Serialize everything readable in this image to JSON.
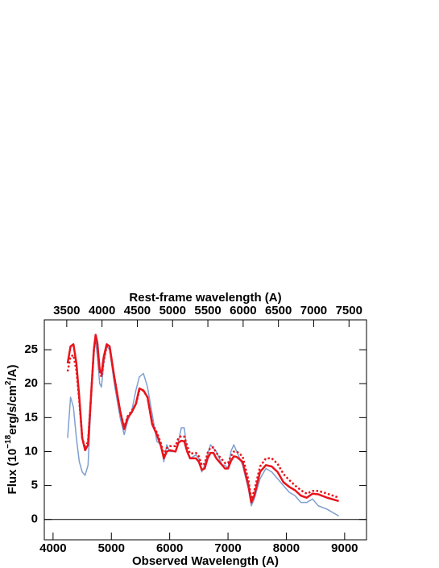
{
  "chart_data": {
    "type": "line",
    "xlabel": "Observed Wavelength (A)",
    "x2label": "Rest-frame wavelength (A)",
    "ylabel": [
      "Flux (10",
      "−18",
      "erg/s/cm",
      "2",
      "/A)"
    ],
    "xlim": [
      3850,
      9375
    ],
    "xticks": [
      4000,
      5000,
      6000,
      7000,
      8000,
      9000
    ],
    "x2lim": [
      3182,
      7748
    ],
    "x2ticks": [
      3500,
      4000,
      4500,
      5000,
      5500,
      6000,
      6500,
      7000,
      7500
    ],
    "ylim": [
      -3,
      29.4
    ],
    "yticks": [
      0,
      5,
      10,
      15,
      20,
      25
    ],
    "hline": 0,
    "x": [
      4250,
      4300,
      4350,
      4400,
      4450,
      4500,
      4550,
      4600,
      4650,
      4700,
      4730,
      4760,
      4800,
      4830,
      4870,
      4920,
      4970,
      5050,
      5150,
      5220,
      5280,
      5350,
      5420,
      5480,
      5550,
      5620,
      5700,
      5780,
      5850,
      5900,
      5950,
      6000,
      6100,
      6150,
      6200,
      6250,
      6300,
      6350,
      6450,
      6500,
      6550,
      6600,
      6650,
      6700,
      6750,
      6800,
      6900,
      6950,
      7000,
      7050,
      7100,
      7150,
      7250,
      7350,
      7400,
      7450,
      7550,
      7650,
      7750,
      7850,
      7950,
      8050,
      8150,
      8250,
      8350,
      8450,
      8550,
      8700,
      8900
    ],
    "series": [
      {
        "color": "#7f9fd0",
        "width": 1.5,
        "dash": false,
        "values": [
          12,
          18,
          16.5,
          12,
          8.5,
          7,
          6.5,
          8,
          17,
          25,
          26.5,
          24,
          20,
          19.5,
          23,
          25.5,
          25,
          20,
          15,
          12.5,
          14.5,
          16,
          19,
          21,
          21.5,
          19.5,
          15.5,
          11.5,
          11,
          8.5,
          11,
          10,
          10,
          11.5,
          13.5,
          13.5,
          10,
          9,
          9.5,
          9,
          7,
          8,
          9.5,
          11,
          10.5,
          10,
          8,
          8,
          7.5,
          10,
          11,
          10,
          8,
          4.5,
          2,
          3,
          6,
          7.5,
          7,
          6,
          5,
          4,
          3.5,
          2.5,
          2.5,
          3,
          2,
          1.5,
          0.5
        ]
      },
      {
        "color": "#e8141c",
        "width": 2.5,
        "dash": true,
        "values": [
          21.8,
          24,
          24.2,
          22,
          17.5,
          12,
          10.5,
          11.5,
          18,
          25,
          26.8,
          25.8,
          21.8,
          21,
          23.5,
          25.5,
          25.3,
          21,
          16,
          13.5,
          15.2,
          16,
          17,
          19,
          19,
          18,
          14.2,
          12.8,
          11.2,
          9.5,
          10.5,
          10.8,
          10.8,
          12,
          12.3,
          12.2,
          10.8,
          9.7,
          9.8,
          9.3,
          8,
          8.2,
          9.8,
          10.6,
          10.6,
          9.8,
          8.8,
          8.3,
          8.3,
          9.3,
          10,
          10,
          9.3,
          5.8,
          3,
          4.2,
          7.8,
          9,
          9,
          8.2,
          6.7,
          5.8,
          5,
          4.3,
          3.8,
          4.2,
          4.2,
          3.8,
          3.2
        ]
      },
      {
        "color": "#e8141c",
        "width": 2.5,
        "dash": false,
        "values": [
          23,
          25.5,
          25.8,
          23,
          18,
          12,
          10.2,
          11,
          18,
          25,
          27.2,
          26,
          22,
          21.5,
          24,
          25.8,
          25.5,
          21,
          16,
          13.3,
          15,
          15.8,
          17,
          19.3,
          19,
          18,
          14,
          12.5,
          10.8,
          9,
          10,
          10.2,
          10,
          11.3,
          11.6,
          11.5,
          10,
          9,
          9,
          8.5,
          7.3,
          7.5,
          9,
          9.8,
          9.8,
          9,
          8,
          7.5,
          7.5,
          8.6,
          9.3,
          9.2,
          8.5,
          5,
          2.5,
          3.5,
          7,
          8,
          7.8,
          7,
          5.5,
          4.8,
          4.3,
          3.5,
          3.2,
          3.8,
          3.7,
          3.2,
          2.7
        ]
      }
    ]
  }
}
